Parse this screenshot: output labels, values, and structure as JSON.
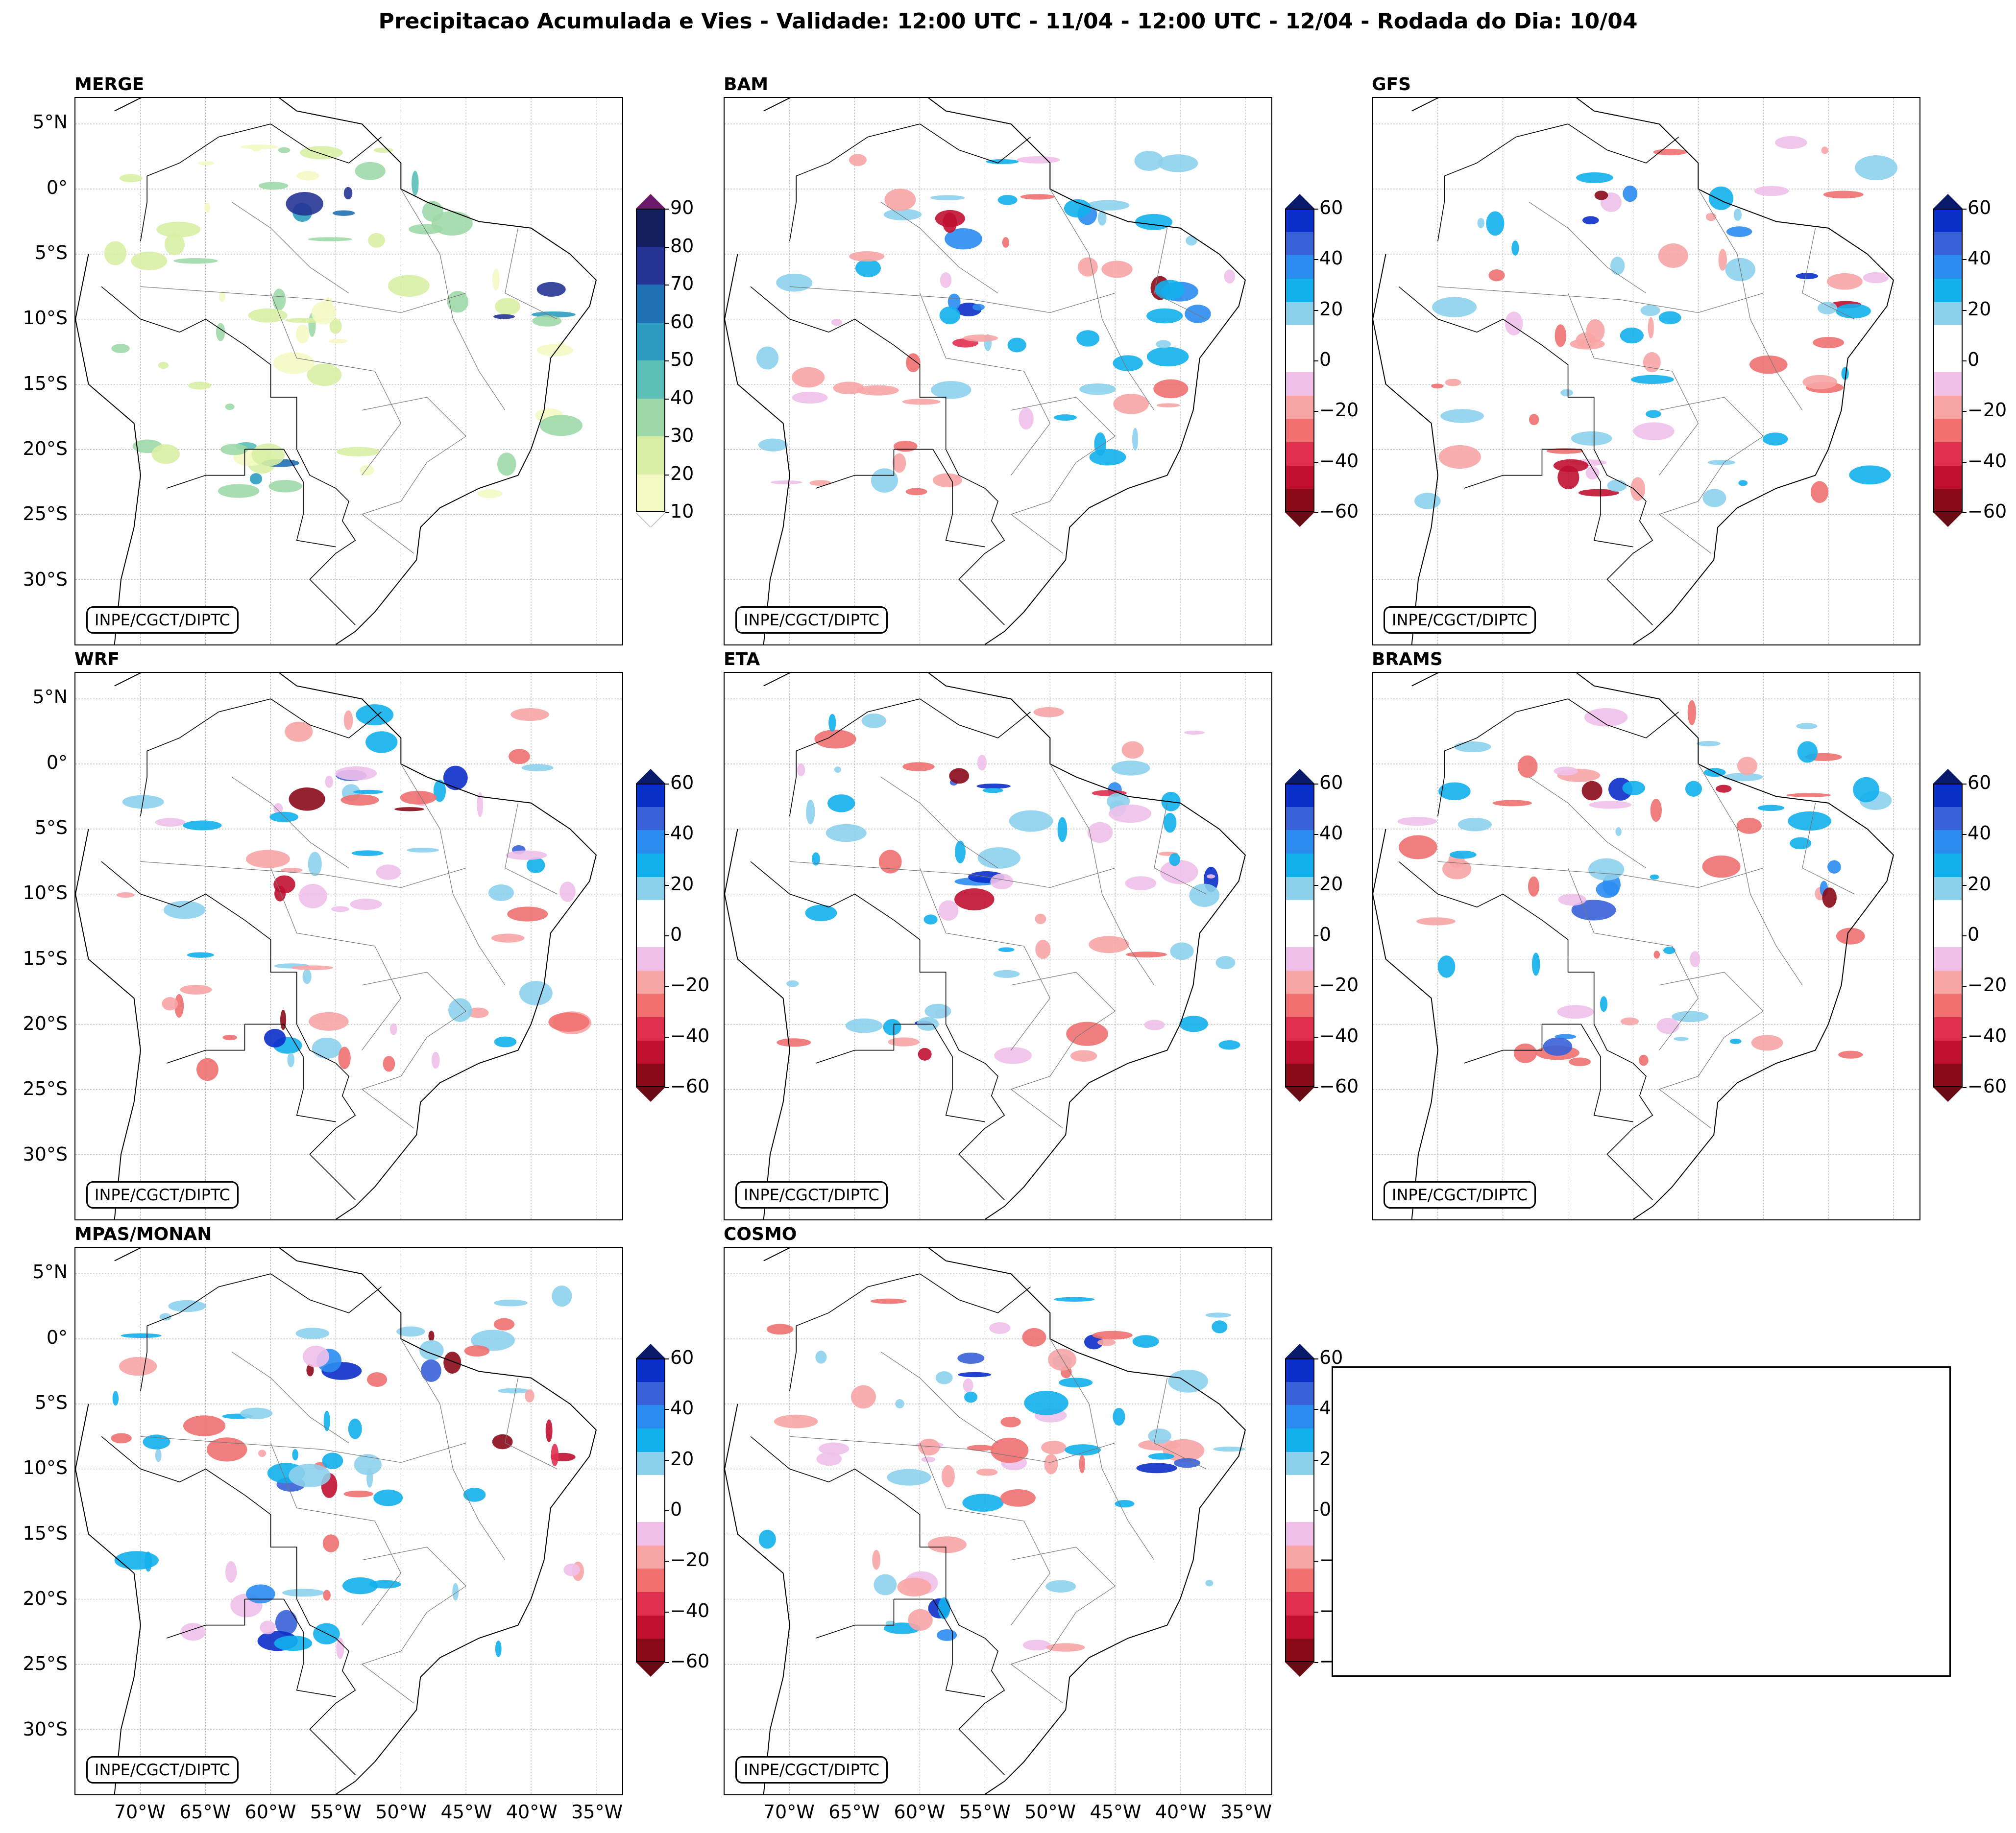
{
  "title": "Precipitacao Acumulada e Vies - Validade: 12:00 UTC - 11/04 - 12:00 UTC - 12/04 - Rodada do Dia: 10/04",
  "credit": "INPE/CGCT/DIPTC",
  "lat_labels": [
    "5°N",
    "0°",
    "5°S",
    "10°S",
    "15°S",
    "20°S",
    "25°S",
    "30°S"
  ],
  "lon_labels": [
    "70°W",
    "65°W",
    "60°W",
    "55°W",
    "50°W",
    "45°W",
    "40°W",
    "35°W"
  ],
  "panels": [
    {
      "name": "MERGE",
      "kind": "merge"
    },
    {
      "name": "BAM",
      "kind": "bias"
    },
    {
      "name": "GFS",
      "kind": "bias"
    },
    {
      "name": "WRF",
      "kind": "bias"
    },
    {
      "name": "ETA",
      "kind": "bias"
    },
    {
      "name": "BRAMS",
      "kind": "bias"
    },
    {
      "name": "MPAS/MONAN",
      "kind": "bias"
    },
    {
      "name": "COSMO",
      "kind": "bias"
    }
  ],
  "colorbars": {
    "merge": {
      "ticks": [
        "10",
        "20",
        "30",
        "40",
        "50",
        "60",
        "70",
        "80",
        "90"
      ],
      "colors": [
        "#f5f9c4",
        "#d9efa5",
        "#9fd8a8",
        "#5bbfb8",
        "#2e9cc0",
        "#2171b5",
        "#253494",
        "#152060"
      ],
      "over": "#6a1a6a",
      "under": "#ffffff"
    },
    "bias": {
      "ticks": [
        "60",
        "40",
        "20",
        "0",
        "−20",
        "−40",
        "−60"
      ],
      "colors": [
        "#0b2fc9",
        "#3a62d8",
        "#2b8cf0",
        "#12b0ec",
        "#8dd0ec",
        "#ffffff",
        "#ffffff",
        "#f0c0ea",
        "#f7a5a5",
        "#f07070",
        "#e03050",
        "#c01030",
        "#8b0a1a"
      ],
      "over": "#0a1a6a",
      "under": "#6a0a14"
    }
  }
}
